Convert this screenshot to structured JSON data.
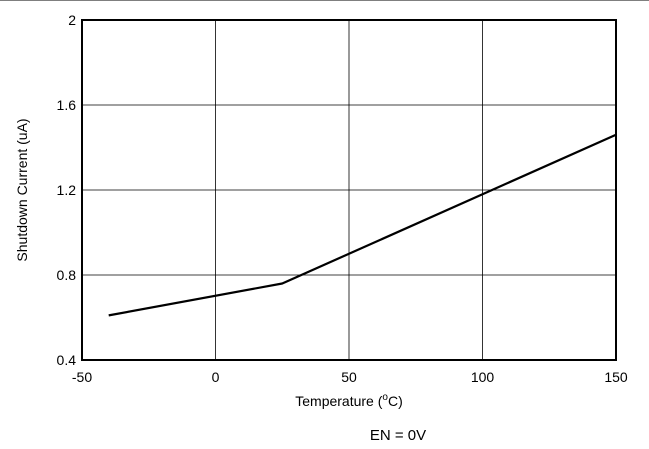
{
  "chart_data": {
    "type": "line",
    "xlabel": "Temperature (",
    "xlabel_sup": "o",
    "xlabel_end": "C)",
    "ylabel": "Shutdown Current (uA)",
    "xlim": [
      -50,
      150
    ],
    "ylim": [
      0.4,
      2.0
    ],
    "x_ticks": [
      -50,
      0,
      50,
      100,
      150
    ],
    "x_tick_labels": [
      "-50",
      "0",
      "50",
      "100",
      "150"
    ],
    "y_ticks": [
      0.4,
      0.8,
      1.2,
      1.6,
      2.0
    ],
    "y_tick_labels": [
      "0.4",
      "0.8",
      "1.2",
      "1.6",
      "2"
    ],
    "grid": true,
    "line_color": "#000000",
    "series": [
      {
        "x": [
          -40,
          25,
          150
        ],
        "y": [
          0.61,
          0.76,
          1.46
        ]
      }
    ],
    "annotation": "EN = 0V"
  }
}
